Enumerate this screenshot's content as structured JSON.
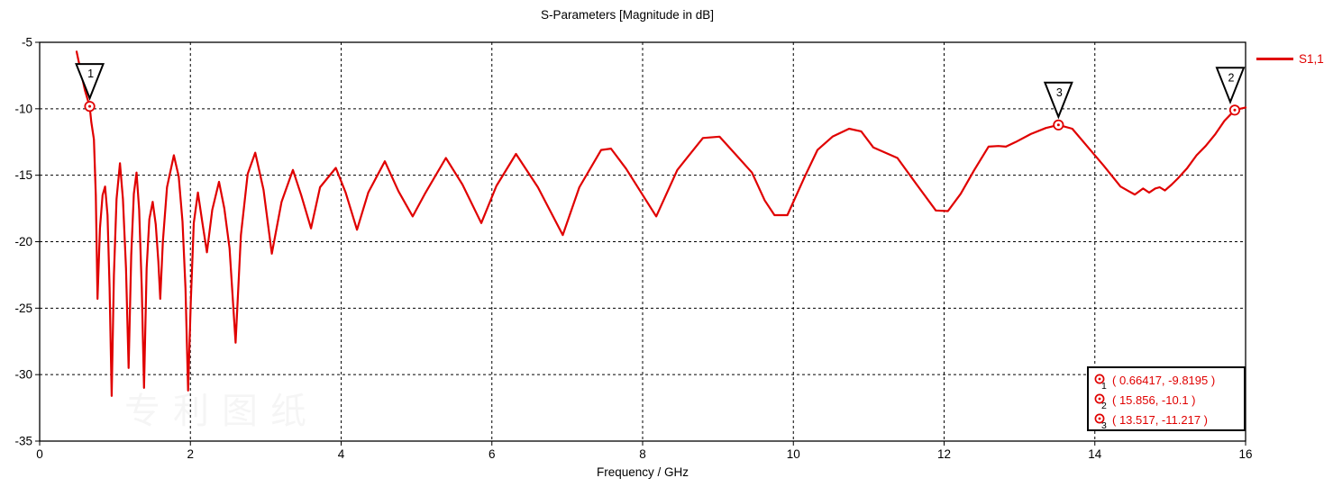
{
  "title": "S-Parameters [Magnitude in dB]",
  "legend": {
    "label": "S1,1",
    "color": "#e00000"
  },
  "axes": {
    "x_label": "Frequency / GHz",
    "x_ticks": [
      0,
      2,
      4,
      6,
      8,
      10,
      12,
      14,
      16
    ],
    "y_ticks": [
      -5,
      -10,
      -15,
      -20,
      -25,
      -30,
      -35
    ]
  },
  "markers": [
    {
      "id": "1",
      "x": 0.66417,
      "y": -9.8195,
      "readout": "( 0.66417, -9.8195 )"
    },
    {
      "id": "2",
      "x": 15.856,
      "y": -10.1,
      "readout": "( 15.856, -10.1 )"
    },
    {
      "id": "3",
      "x": 13.517,
      "y": -11.217,
      "readout": "( 13.517, -11.217 )"
    }
  ],
  "watermark": "专利图纸",
  "chart_data": {
    "type": "line",
    "title": "S-Parameters [Magnitude in dB]",
    "xlabel": "Frequency / GHz",
    "ylabel": "",
    "xlim": [
      0,
      16
    ],
    "ylim": [
      -35,
      -5
    ],
    "grid": "dashed",
    "legend_position": "top-right",
    "line_color": "#e00000",
    "series": [
      {
        "name": "S1,1",
        "points": [
          [
            0.49,
            -5.7
          ],
          [
            0.55,
            -7.3
          ],
          [
            0.6,
            -8.6
          ],
          [
            0.66417,
            -9.8195
          ],
          [
            0.685,
            -11.0
          ],
          [
            0.72,
            -12.3
          ],
          [
            0.745,
            -16.5
          ],
          [
            0.768,
            -24.3
          ],
          [
            0.8,
            -19.0
          ],
          [
            0.835,
            -16.5
          ],
          [
            0.868,
            -15.85
          ],
          [
            0.9,
            -18.0
          ],
          [
            0.928,
            -23.5
          ],
          [
            0.955,
            -31.6
          ],
          [
            0.985,
            -22.5
          ],
          [
            1.02,
            -16.8
          ],
          [
            1.065,
            -14.1
          ],
          [
            1.105,
            -16.8
          ],
          [
            1.145,
            -22.0
          ],
          [
            1.18,
            -29.5
          ],
          [
            1.215,
            -21.0
          ],
          [
            1.25,
            -16.4
          ],
          [
            1.285,
            -14.8
          ],
          [
            1.32,
            -17.6
          ],
          [
            1.355,
            -23.5
          ],
          [
            1.385,
            -31.0
          ],
          [
            1.42,
            -22.0
          ],
          [
            1.455,
            -18.3
          ],
          [
            1.5,
            -17.0
          ],
          [
            1.54,
            -18.7
          ],
          [
            1.575,
            -21.5
          ],
          [
            1.6,
            -24.3
          ],
          [
            1.635,
            -20.0
          ],
          [
            1.69,
            -15.9
          ],
          [
            1.78,
            -13.5
          ],
          [
            1.845,
            -15.1
          ],
          [
            1.895,
            -18.5
          ],
          [
            1.935,
            -23.5
          ],
          [
            1.97,
            -31.2
          ],
          [
            2.005,
            -24.5
          ],
          [
            2.045,
            -18.6
          ],
          [
            2.1,
            -16.3
          ],
          [
            2.16,
            -18.6
          ],
          [
            2.22,
            -20.8
          ],
          [
            2.29,
            -17.6
          ],
          [
            2.38,
            -15.5
          ],
          [
            2.45,
            -17.5
          ],
          [
            2.52,
            -20.5
          ],
          [
            2.6,
            -27.6
          ],
          [
            2.67,
            -19.5
          ],
          [
            2.76,
            -14.9
          ],
          [
            2.86,
            -13.3
          ],
          [
            2.97,
            -16.1
          ],
          [
            3.08,
            -20.9
          ],
          [
            3.21,
            -17.0
          ],
          [
            3.36,
            -14.6
          ],
          [
            3.47,
            -16.5
          ],
          [
            3.6,
            -19.0
          ],
          [
            3.72,
            -15.9
          ],
          [
            3.93,
            -14.45
          ],
          [
            4.06,
            -16.3
          ],
          [
            4.21,
            -19.1
          ],
          [
            4.36,
            -16.3
          ],
          [
            4.58,
            -13.95
          ],
          [
            4.76,
            -16.2
          ],
          [
            4.95,
            -18.1
          ],
          [
            5.12,
            -16.3
          ],
          [
            5.39,
            -13.7
          ],
          [
            5.61,
            -15.7
          ],
          [
            5.86,
            -18.6
          ],
          [
            6.06,
            -15.8
          ],
          [
            6.32,
            -13.4
          ],
          [
            6.61,
            -15.9
          ],
          [
            6.94,
            -19.5
          ],
          [
            7.16,
            -15.9
          ],
          [
            7.45,
            -13.1
          ],
          [
            7.58,
            -13.0
          ],
          [
            7.78,
            -14.5
          ],
          [
            8.18,
            -18.1
          ],
          [
            8.46,
            -14.6
          ],
          [
            8.8,
            -12.2
          ],
          [
            9.02,
            -12.1
          ],
          [
            9.26,
            -13.6
          ],
          [
            9.45,
            -14.8
          ],
          [
            9.62,
            -16.9
          ],
          [
            9.75,
            -18.0
          ],
          [
            9.92,
            -18.0
          ],
          [
            10.16,
            -15.0
          ],
          [
            10.32,
            -13.1
          ],
          [
            10.52,
            -12.1
          ],
          [
            10.74,
            -11.5
          ],
          [
            10.9,
            -11.7
          ],
          [
            11.06,
            -12.9
          ],
          [
            11.38,
            -13.7
          ],
          [
            11.65,
            -15.8
          ],
          [
            11.89,
            -17.65
          ],
          [
            12.05,
            -17.7
          ],
          [
            12.22,
            -16.4
          ],
          [
            12.4,
            -14.6
          ],
          [
            12.59,
            -12.85
          ],
          [
            12.72,
            -12.8
          ],
          [
            12.82,
            -12.85
          ],
          [
            12.95,
            -12.5
          ],
          [
            13.15,
            -11.9
          ],
          [
            13.35,
            -11.45
          ],
          [
            13.517,
            -11.217
          ],
          [
            13.7,
            -11.5
          ],
          [
            13.94,
            -13.1
          ],
          [
            14.12,
            -14.3
          ],
          [
            14.34,
            -15.85
          ],
          [
            14.45,
            -16.2
          ],
          [
            14.53,
            -16.45
          ],
          [
            14.64,
            -16.0
          ],
          [
            14.72,
            -16.3
          ],
          [
            14.8,
            -16.0
          ],
          [
            14.86,
            -15.9
          ],
          [
            14.93,
            -16.15
          ],
          [
            15.02,
            -15.7
          ],
          [
            15.1,
            -15.25
          ],
          [
            15.22,
            -14.5
          ],
          [
            15.35,
            -13.5
          ],
          [
            15.47,
            -12.8
          ],
          [
            15.6,
            -11.9
          ],
          [
            15.72,
            -10.9
          ],
          [
            15.856,
            -10.1
          ],
          [
            15.93,
            -10.0
          ],
          [
            16.0,
            -9.9
          ]
        ]
      }
    ],
    "annotations": [
      {
        "marker": "1",
        "x": 0.66417,
        "y": -9.8195
      },
      {
        "marker": "2",
        "x": 15.856,
        "y": -10.1
      },
      {
        "marker": "3",
        "x": 13.517,
        "y": -11.217
      }
    ]
  }
}
